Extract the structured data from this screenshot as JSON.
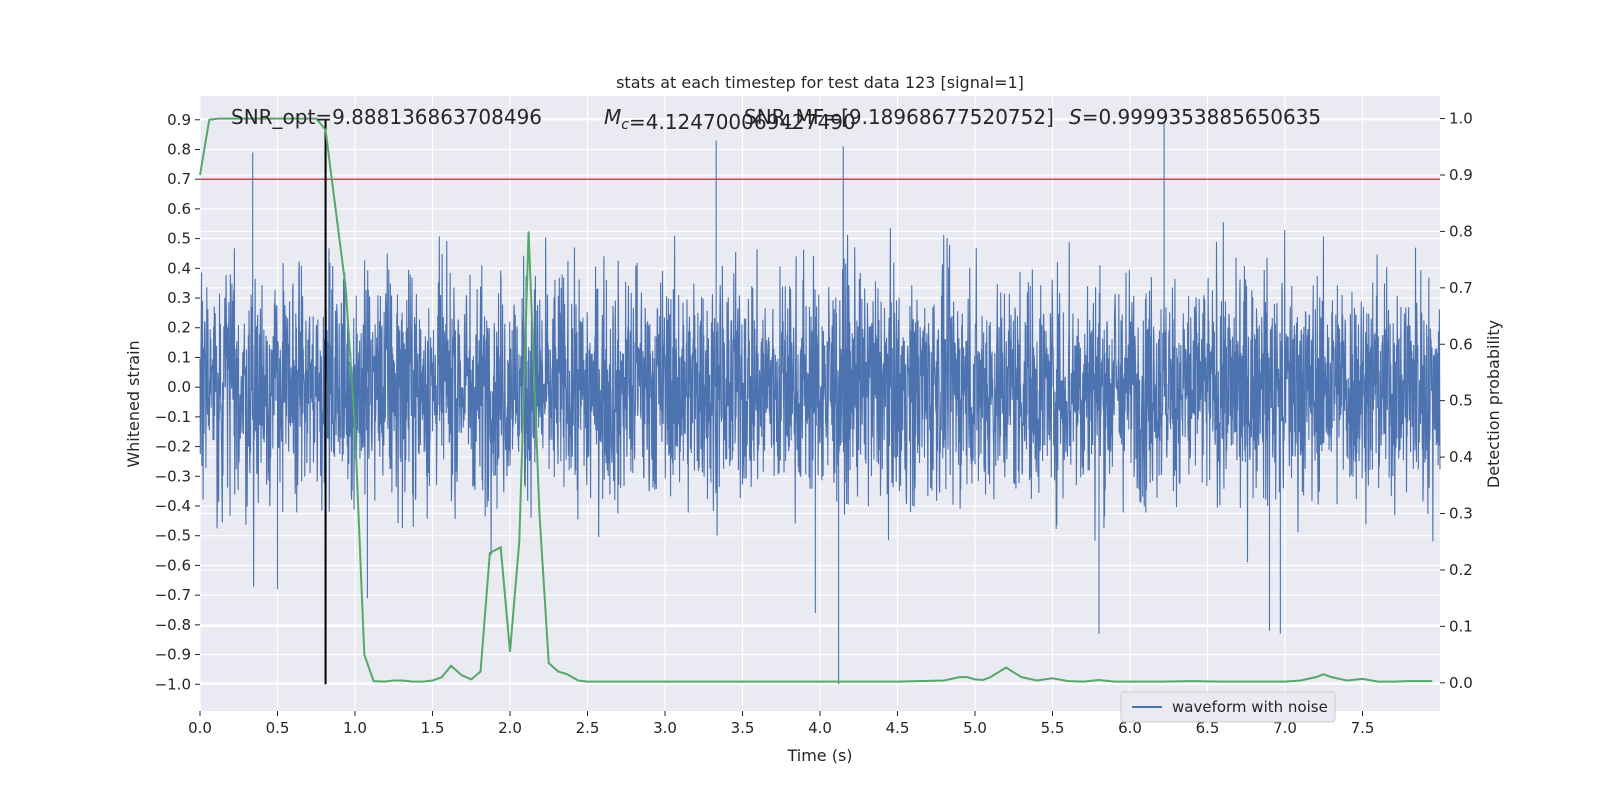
{
  "chart_data": {
    "type": "line",
    "title": "stats at each timestep for test data 123 [signal=1]",
    "xlabel": "Time (s)",
    "ylabel_left": "Whitened strain",
    "ylabel_right": "Detection probability",
    "xlim": [
      0.0,
      8.0
    ],
    "ylim_left": [
      -1.09,
      0.98
    ],
    "ylim_right": [
      -0.05,
      1.04
    ],
    "x_ticks": [
      "0.0",
      "0.5",
      "1.0",
      "1.5",
      "2.0",
      "2.5",
      "3.0",
      "3.5",
      "4.0",
      "4.5",
      "5.0",
      "5.5",
      "6.0",
      "6.5",
      "7.0",
      "7.5"
    ],
    "y_left_ticks": [
      "0.9",
      "0.8",
      "0.7",
      "0.6",
      "0.5",
      "0.4",
      "0.3",
      "0.2",
      "0.1",
      "0.0",
      "−0.1",
      "−0.2",
      "−0.3",
      "−0.4",
      "−0.5",
      "−0.6",
      "−0.7",
      "−0.8",
      "−0.9",
      "−1.0"
    ],
    "y_right_ticks": [
      "1.0",
      "0.9",
      "0.8",
      "0.7",
      "0.6",
      "0.5",
      "0.4",
      "0.3",
      "0.2",
      "0.1",
      "0.0"
    ],
    "grid": true,
    "legend": {
      "position": "lower-right",
      "entries": [
        "waveform with noise"
      ]
    },
    "annotations": [
      "SNR_opt=9.888136863708496",
      "$M_c$=4.124700069427490",
      "SNR_MF=[9.18968677520752]",
      "$S$=0.9999353885650635"
    ],
    "threshold_line": {
      "axis": "left",
      "y": 0.7,
      "color": "#c44e52"
    },
    "vertical_marker": {
      "x": 0.81,
      "y_from": -1.0,
      "y_to": 0.9,
      "color": "#000000"
    },
    "series": [
      {
        "name": "waveform with noise",
        "axis": "left",
        "color": "#4c72b0",
        "sampling": "dense noise, 8 s",
        "envelope": {
          "typical_abs": 0.45,
          "max": 0.89,
          "min": -1.0
        },
        "spikes": [
          {
            "x": 0.34,
            "y": 0.79
          },
          {
            "x": 3.33,
            "y": 0.83
          },
          {
            "x": 4.15,
            "y": 0.81
          },
          {
            "x": 6.22,
            "y": 0.89
          },
          {
            "x": 4.12,
            "y": -1.0
          },
          {
            "x": 5.8,
            "y": -0.83
          },
          {
            "x": 6.97,
            "y": -0.83
          },
          {
            "x": 3.97,
            "y": -0.76
          },
          {
            "x": 1.08,
            "y": -0.71
          },
          {
            "x": 0.5,
            "y": -0.68
          },
          {
            "x": 6.9,
            "y": -0.82
          }
        ]
      },
      {
        "name": "",
        "axis": "right",
        "color": "#55a868",
        "x": [
          0.0,
          0.06,
          0.12,
          0.19,
          0.25,
          0.31,
          0.37,
          0.44,
          0.5,
          0.56,
          0.62,
          0.69,
          0.75,
          0.81,
          0.87,
          0.94,
          1.0,
          1.06,
          1.12,
          1.19,
          1.25,
          1.31,
          1.37,
          1.44,
          1.5,
          1.56,
          1.62,
          1.69,
          1.75,
          1.81,
          1.87,
          1.94,
          2.0,
          2.06,
          2.12,
          2.19,
          2.25,
          2.31,
          2.37,
          2.44,
          2.5,
          2.6,
          2.8,
          3.0,
          3.2,
          3.4,
          3.5,
          3.7,
          4.0,
          4.2,
          4.5,
          4.8,
          4.9,
          4.95,
          5.0,
          5.05,
          5.1,
          5.2,
          5.3,
          5.4,
          5.5,
          5.6,
          5.7,
          5.8,
          5.9,
          6.0,
          6.2,
          6.4,
          6.6,
          6.8,
          7.0,
          7.1,
          7.2,
          7.25,
          7.3,
          7.4,
          7.5,
          7.6,
          7.7,
          7.8,
          7.95
        ],
        "y": [
          0.9,
          0.998,
          1.0,
          1.0,
          1.0,
          1.0,
          1.0,
          1.0,
          1.0,
          1.0,
          1.0,
          1.0,
          1.0,
          0.98,
          0.85,
          0.7,
          0.45,
          0.05,
          0.003,
          0.002,
          0.004,
          0.004,
          0.002,
          0.002,
          0.004,
          0.01,
          0.03,
          0.013,
          0.006,
          0.02,
          0.23,
          0.24,
          0.055,
          0.25,
          0.8,
          0.3,
          0.035,
          0.02,
          0.015,
          0.004,
          0.002,
          0.002,
          0.002,
          0.002,
          0.002,
          0.002,
          0.002,
          0.002,
          0.002,
          0.002,
          0.002,
          0.004,
          0.01,
          0.01,
          0.006,
          0.005,
          0.01,
          0.027,
          0.01,
          0.004,
          0.008,
          0.003,
          0.002,
          0.005,
          0.002,
          0.002,
          0.002,
          0.003,
          0.002,
          0.002,
          0.002,
          0.004,
          0.01,
          0.015,
          0.01,
          0.004,
          0.007,
          0.002,
          0.002,
          0.003,
          0.003
        ]
      }
    ]
  }
}
